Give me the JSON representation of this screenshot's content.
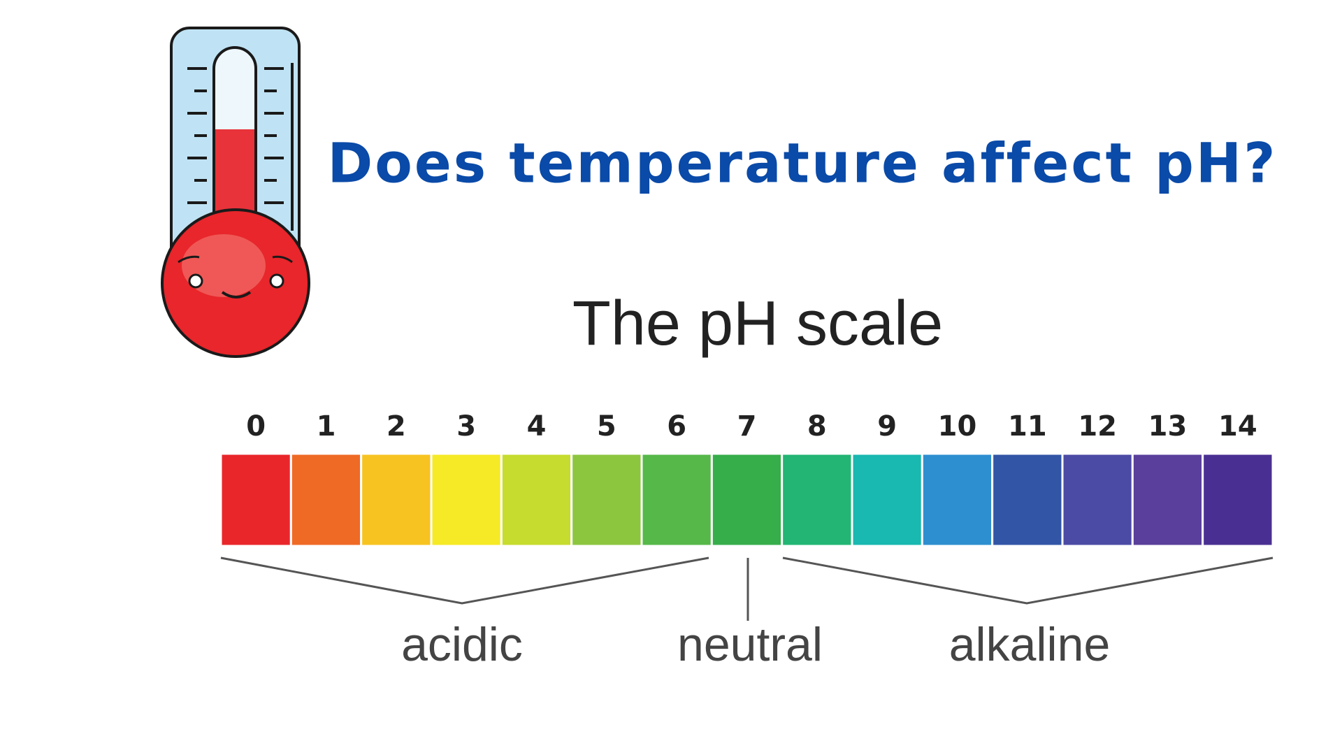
{
  "header": {
    "title": "Does temperature affect pH?"
  },
  "scale": {
    "title": "The pH scale",
    "levels": [
      0,
      1,
      2,
      3,
      4,
      5,
      6,
      7,
      8,
      9,
      10,
      11,
      12,
      13,
      14
    ],
    "colors": [
      "#e9262a",
      "#ef6a25",
      "#f7c320",
      "#f5ea25",
      "#c6dc2e",
      "#8cc63f",
      "#55b848",
      "#36ae4a",
      "#22b573",
      "#19b8b0",
      "#2e8fd0",
      "#3255a6",
      "#4b4aa5",
      "#5a3f9c",
      "#4a2f92"
    ],
    "groups": {
      "acidic": "acidic",
      "neutral": "neutral",
      "alkaline": "alkaline"
    }
  }
}
